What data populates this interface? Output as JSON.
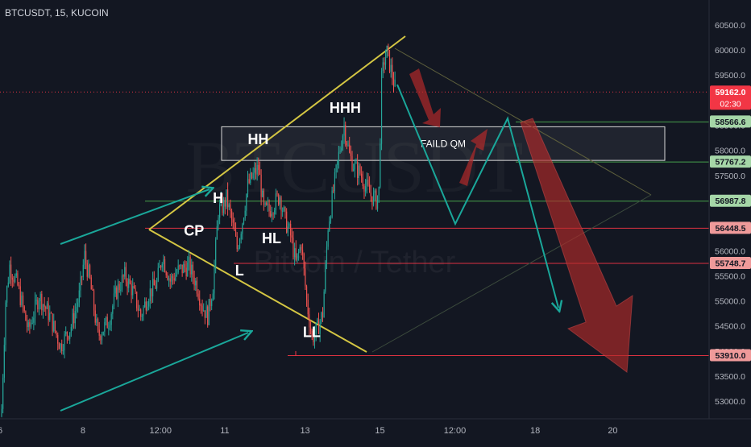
{
  "symbol_title": "BTCUSDT, 15, KUCOIN",
  "watermark": {
    "main": "BTCUSDT",
    "sub": "Bitcoin / Tether"
  },
  "chart_data": {
    "type": "candlestick",
    "title": "BTCUSDT, 15, KUCOIN",
    "y_axis": {
      "ticks": [
        60500,
        60000,
        59500,
        59000,
        58500,
        58000,
        57500,
        57000,
        56500,
        56000,
        55500,
        55000,
        54500,
        54000,
        53500,
        53000
      ],
      "tick_labels": [
        "60500.0",
        "60000.0",
        "59500.0",
        "59000.0",
        "58500.0",
        "58000.0",
        "57500.0",
        "57000.0",
        "56500.0",
        "56000.0",
        "55500.0",
        "55000.0",
        "54500.0",
        "54000.0",
        "53500.0",
        "53000.0"
      ],
      "range": [
        52650,
        60900
      ]
    },
    "x_axis": {
      "tick_labels": [
        "6",
        "8",
        "12:00",
        "11",
        "13",
        "15",
        "12:00",
        "18",
        "20"
      ],
      "tick_indices": [
        0,
        62,
        120,
        168,
        228,
        284,
        340,
        400,
        458
      ],
      "range_index": [
        0,
        530
      ]
    },
    "price_badges": [
      {
        "label": "59162.0",
        "sublabel": "02:30",
        "value": 59162,
        "color": "#f23645",
        "text_color": "#ffffff",
        "line": "dotted"
      },
      {
        "label": "58566.6",
        "value": 58566.6,
        "color": "#a5d6a7",
        "text_color": "#131722",
        "line": "solid"
      },
      {
        "label": "57767.2",
        "value": 57767.2,
        "color": "#a5d6a7",
        "text_color": "#131722",
        "line": "solid"
      },
      {
        "label": "56987.8",
        "value": 56987.8,
        "color": "#a5d6a7",
        "text_color": "#131722",
        "line": "solid"
      },
      {
        "label": "56448.5",
        "value": 56448.5,
        "color": "#ef9a9a",
        "text_color": "#131722",
        "line": "solid"
      },
      {
        "label": "55748.7",
        "value": 55748.7,
        "color": "#ef9a9a",
        "text_color": "#131722",
        "line": "solid"
      },
      {
        "label": "53910.0",
        "value": 53910,
        "color": "#ef9a9a",
        "text_color": "#131722",
        "line": "solid"
      }
    ],
    "pattern_labels": [
      {
        "text": "CP",
        "idx": 145,
        "price": 56300
      },
      {
        "text": "H",
        "idx": 163,
        "price": 56950
      },
      {
        "text": "HH",
        "idx": 193,
        "price": 58120
      },
      {
        "text": "HHH",
        "idx": 258,
        "price": 58750
      },
      {
        "text": "HL",
        "idx": 203,
        "price": 56150
      },
      {
        "text": "L",
        "idx": 179,
        "price": 55510
      },
      {
        "text": "LL",
        "idx": 233,
        "price": 54280
      }
    ],
    "zone": {
      "label": "FAILD QM",
      "from": 57800,
      "to": 58470
    },
    "candles": []
  },
  "colors": {
    "background": "#131722",
    "up": "#26a69a",
    "down": "#ef5350",
    "triangle": "#d4c643",
    "projection": "#1aa79a",
    "arrow": "#b22a2a",
    "axis_text": "#b2b5be",
    "label_text": "#ffffff"
  }
}
